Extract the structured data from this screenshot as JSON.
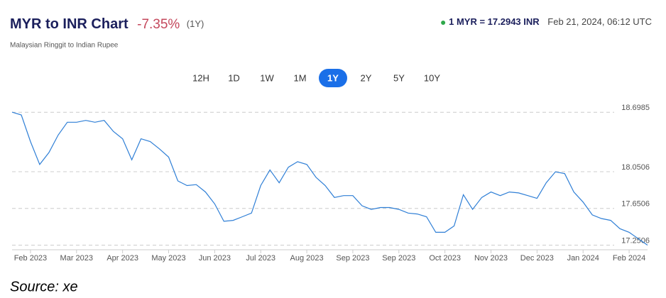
{
  "header": {
    "change": "-7.35%",
    "period": "(1Y)",
    "rate": "1 MYR = 17.2943 INR",
    "timestamp": "Feb 21, 2024, 06:12 UTC",
    "ranges": [
      "12H",
      "1D",
      "1W",
      "1M",
      "1Y",
      "2Y",
      "5Y",
      "10Y"
    ],
    "active_range": 4
  },
  "chart_data": {
    "type": "line",
    "title": "MYR to INR Chart",
    "subtitle": "Malaysian Ringgit to Indian Rupee",
    "source": "Source: xe",
    "color": "#2f7fd6",
    "grid": true,
    "ylim": [
      17.2,
      18.84
    ],
    "yticks": [
      17.2506,
      17.6506,
      18.0506,
      18.6985
    ],
    "categories": [
      null,
      null,
      "Feb 2023",
      null,
      null,
      null,
      null,
      "Mar 2023",
      null,
      null,
      null,
      null,
      "Apr 2023",
      null,
      null,
      null,
      null,
      "May 2023",
      null,
      null,
      null,
      null,
      "Jun 2023",
      null,
      null,
      null,
      null,
      "Jul 2023",
      null,
      null,
      null,
      null,
      "Aug 2023",
      null,
      null,
      null,
      null,
      "Sep 2023",
      null,
      null,
      null,
      null,
      "Sep 2023",
      null,
      null,
      null,
      null,
      "Oct 2023",
      null,
      null,
      null,
      null,
      "Nov 2023",
      null,
      null,
      null,
      null,
      "Dec 2023",
      null,
      null,
      null,
      null,
      "Jan 2024",
      null,
      null,
      null,
      null,
      "Feb 2024",
      null,
      null
    ],
    "series": [
      {
        "name": "MYR/INR",
        "color": "#2f7fd6",
        "values": [
          18.7,
          18.67,
          18.38,
          18.13,
          18.26,
          18.45,
          18.59,
          18.59,
          18.61,
          18.59,
          18.61,
          18.49,
          18.41,
          18.18,
          18.41,
          18.38,
          18.3,
          18.21,
          17.95,
          17.9,
          17.91,
          17.83,
          17.7,
          17.51,
          17.52,
          17.56,
          17.6,
          17.9,
          18.07,
          17.93,
          18.1,
          18.16,
          18.13,
          17.99,
          17.9,
          17.77,
          17.79,
          17.79,
          17.68,
          17.64,
          17.66,
          17.66,
          17.64,
          17.6,
          17.59,
          17.56,
          17.39,
          17.39,
          17.46,
          17.8,
          17.64,
          17.77,
          17.83,
          17.79,
          17.83,
          17.82,
          17.79,
          17.76,
          17.93,
          18.05,
          18.03,
          17.83,
          17.72,
          17.58,
          17.54,
          17.52,
          17.43,
          17.39,
          17.32,
          17.25
        ]
      }
    ]
  }
}
